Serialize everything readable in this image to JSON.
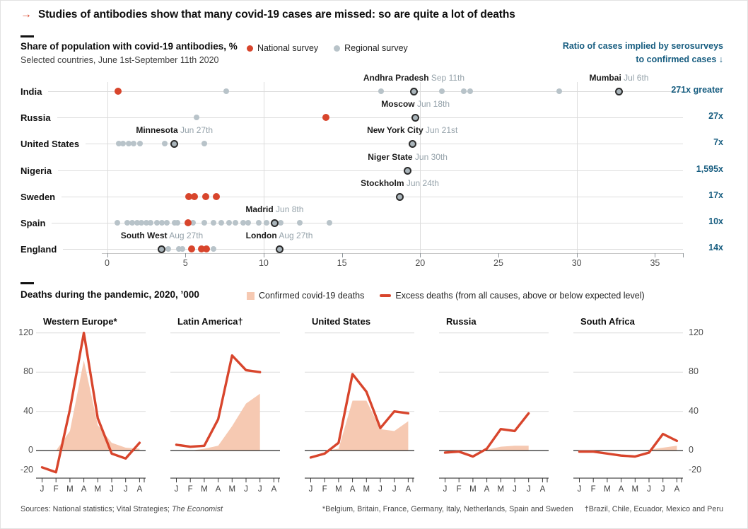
{
  "page_title": {
    "arrow": "→",
    "text": "Studies of antibodies show that many covid-19 cases are missed: so are quite a lot of deaths"
  },
  "colors": {
    "red": "#D8452C",
    "salmon": "#F6C9B2",
    "gray_dot": "#B8C3C9",
    "ring_fill": "#A9B4BA",
    "ring_stroke": "#2B2B2B",
    "blue": "#175D80",
    "grid": "#DCDCDC",
    "dark_line": "#3A3A3A"
  },
  "chart_data": [
    {
      "type": "scatter",
      "title": "Share of population with covid-19 antibodies, %",
      "subtitle": "Selected countries, June 1st-September 11th 2020",
      "legend": [
        {
          "label": "National survey",
          "color": "#D8452C"
        },
        {
          "label": "Regional survey",
          "color": "#B8C3C9"
        }
      ],
      "right_axis_title": [
        "Ratio of cases implied by serosurveys",
        "to confirmed cases ↓"
      ],
      "xlim": [
        0,
        35
      ],
      "xticks": [
        0,
        5,
        10,
        15,
        20,
        25,
        30,
        35
      ],
      "grid_x": [
        0,
        10,
        20,
        30
      ],
      "rows": [
        {
          "country": "India",
          "ratio": "271x greater",
          "national": [
            0.7
          ],
          "regional": [
            7.6,
            17.5,
            21.4,
            22.8,
            23.2,
            28.9
          ],
          "highlighted": [
            {
              "value": 19.6,
              "label": "Andhra Pradesh",
              "date": "Sep 11th"
            },
            {
              "value": 32.7,
              "label": "Mumbai",
              "date": "Jul 6th"
            }
          ]
        },
        {
          "country": "Russia",
          "ratio": "27x",
          "national": [
            14.0
          ],
          "regional": [
            5.7
          ],
          "highlighted": [
            {
              "value": 19.7,
              "label": "Moscow",
              "date": "Jun 18th"
            }
          ]
        },
        {
          "country": "United States",
          "ratio": "7x",
          "national": [],
          "regional": [
            0.75,
            1.0,
            1.4,
            1.7,
            2.1,
            3.7,
            6.2
          ],
          "highlighted": [
            {
              "value": 4.3,
              "label": "Minnesota",
              "date": "Jun 27th"
            },
            {
              "value": 19.5,
              "label": "New York City",
              "date": "Jun 21st"
            }
          ]
        },
        {
          "country": "Nigeria",
          "ratio": "1,595x",
          "national": [],
          "regional": [],
          "highlighted": [
            {
              "value": 19.2,
              "label": "Niger State",
              "date": "Jun 30th"
            }
          ]
        },
        {
          "country": "Sweden",
          "ratio": "17x",
          "national": [
            5.2,
            5.6,
            6.3,
            7.0
          ],
          "regional": [],
          "highlighted": [
            {
              "value": 18.7,
              "label": "Stockholm",
              "date": "Jun 24th"
            }
          ]
        },
        {
          "country": "Spain",
          "ratio": "10x",
          "national": [
            5.15
          ],
          "regional": [
            0.65,
            1.3,
            1.6,
            1.9,
            2.2,
            2.5,
            2.8,
            3.2,
            3.5,
            3.8,
            4.3,
            4.5,
            5.5,
            6.2,
            6.8,
            7.3,
            7.8,
            8.2,
            8.7,
            9.0,
            9.7,
            10.2,
            11.1,
            12.3,
            14.2
          ],
          "highlighted": [
            {
              "value": 10.7,
              "label": "Madrid",
              "date": "Jun 8th"
            }
          ]
        },
        {
          "country": "England",
          "ratio": "14x",
          "national": [
            5.4,
            6.05,
            6.35
          ],
          "regional": [
            3.9,
            4.6,
            4.8,
            6.8
          ],
          "highlighted": [
            {
              "value": 3.5,
              "label": "South West",
              "date": "Aug 27th"
            },
            {
              "value": 11.0,
              "label": "London",
              "date": "Aug 27th"
            }
          ]
        }
      ]
    },
    {
      "type": "area",
      "title": "Deaths during the pandemic, 2020, ’000",
      "legend": [
        {
          "label": "Confirmed covid-19 deaths",
          "swatch": "area",
          "color": "#F6C9B2"
        },
        {
          "label": "Excess deaths (from all causes, above or below expected level)",
          "swatch": "line",
          "color": "#D8452C"
        }
      ],
      "months": [
        "J",
        "F",
        "M",
        "A",
        "M",
        "J",
        "J",
        "A"
      ],
      "yticks": [
        120,
        80,
        40,
        0,
        -20
      ],
      "ylim": [
        -28,
        127
      ],
      "panels": [
        {
          "title": "Western Europe*",
          "excess": [
            -17,
            -22,
            42,
            120,
            33,
            -3,
            -8,
            8
          ],
          "confirmed": [
            0,
            0,
            20,
            92,
            26,
            8,
            3,
            2
          ]
        },
        {
          "title": "Latin America†",
          "excess": [
            6,
            4,
            5,
            32,
            97,
            82,
            80
          ],
          "confirmed": [
            0,
            0,
            2,
            5,
            25,
            48,
            58
          ]
        },
        {
          "title": "United States",
          "excess": [
            -7,
            -3,
            8,
            78,
            60,
            23,
            40,
            38
          ],
          "confirmed": [
            0,
            0,
            2,
            51,
            51,
            22,
            20,
            30
          ]
        },
        {
          "title": "Russia",
          "excess": [
            -2,
            -1,
            -6,
            2,
            22,
            20,
            38
          ],
          "confirmed": [
            0,
            0,
            0,
            1,
            4,
            5,
            5
          ]
        },
        {
          "title": "South Africa",
          "excess": [
            -1,
            -1,
            -3,
            -5,
            -6,
            -2,
            17,
            10
          ],
          "confirmed": [
            0,
            0,
            0,
            0,
            0,
            1,
            3,
            5
          ]
        }
      ]
    }
  ],
  "footer": {
    "sources_prefix": "Sources: National statistics; Vital Strategies; ",
    "sources_italic": "The Economist",
    "footnote_star": "*Belgium, Britain, France, Germany, Italy, Netherlands, Spain and Sweden",
    "footnote_dagger": "†Brazil, Chile, Ecuador, Mexico and Peru"
  }
}
